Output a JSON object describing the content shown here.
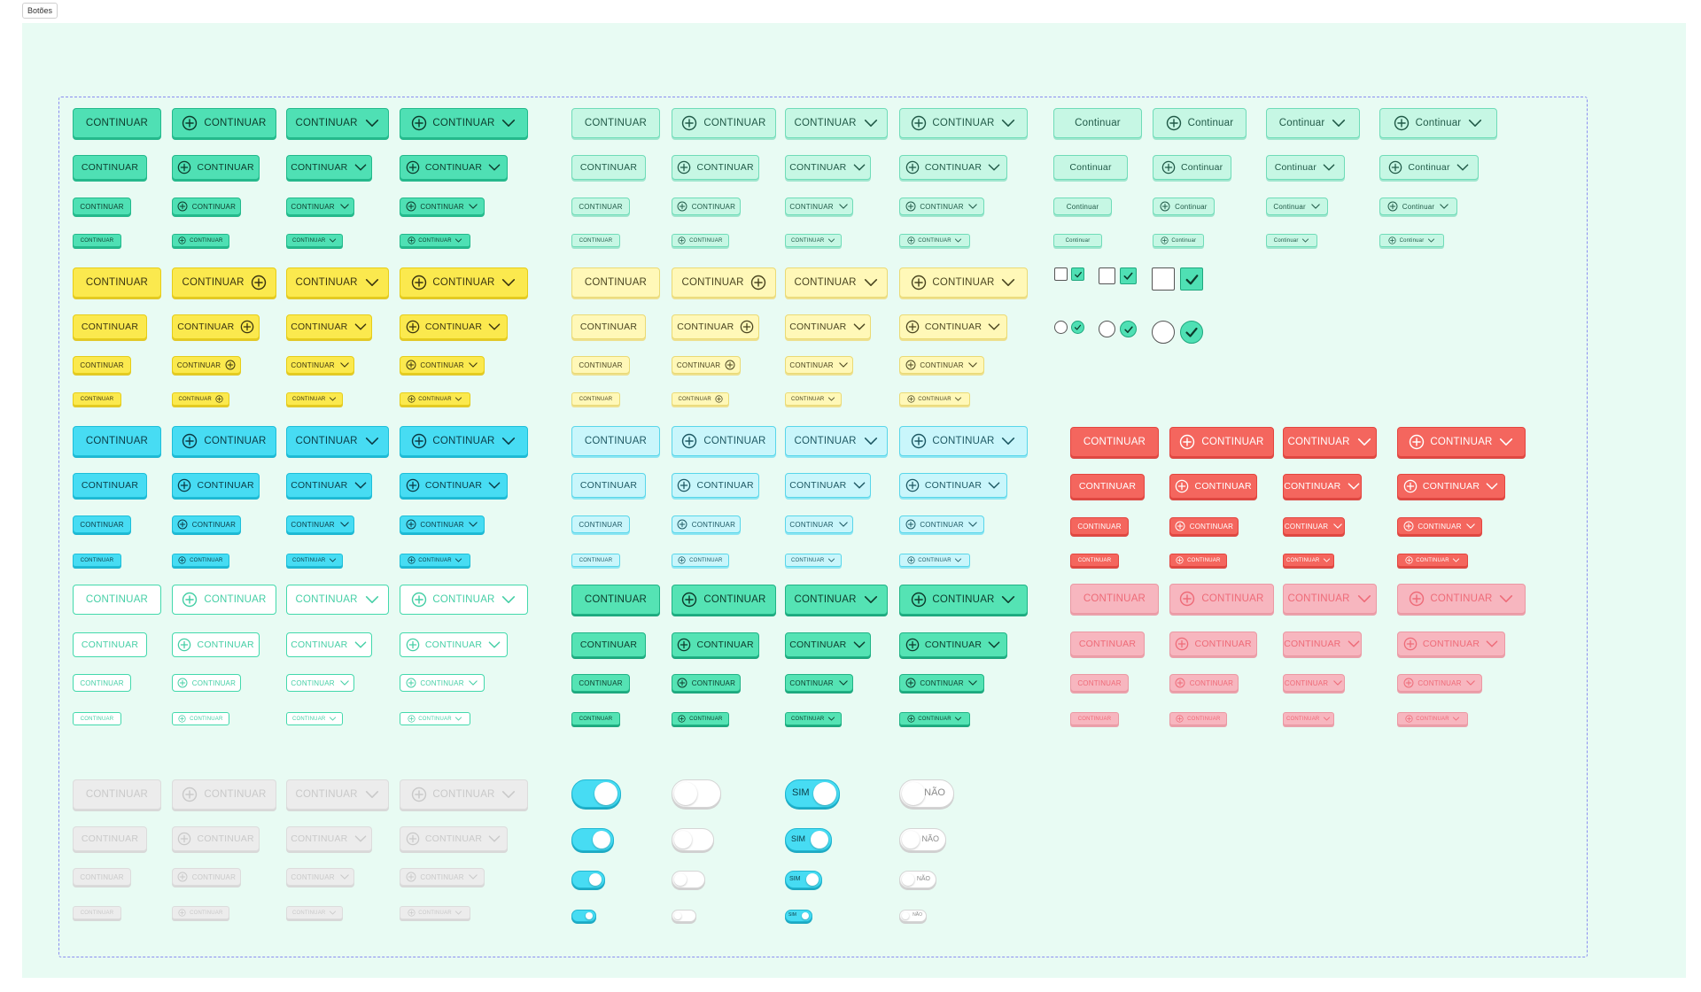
{
  "frame": {
    "label": "Botões"
  },
  "buttons": {
    "upper_label": "CONTINUAR",
    "mixed_label": "Continuar"
  },
  "variants": {
    "green_solid": "#4fe0b4",
    "green_light": "#c6f7e4",
    "yellow_solid": "#fbe94e",
    "yellow_light": "#fff8b8",
    "cyan_solid": "#47dcf3",
    "cyan_light": "#c9f6fb",
    "red_solid": "#f4665e",
    "red_light": "#f7b6bf",
    "outline_border": "#43d9ac",
    "disabled": "#ececec"
  },
  "selection_controls": {
    "checkboxes": [
      {
        "checked": false
      },
      {
        "checked": true
      },
      {
        "checked": false
      },
      {
        "checked": true
      },
      {
        "checked": false
      },
      {
        "checked": true
      }
    ],
    "radios": [
      {
        "checked": false
      },
      {
        "checked": true
      },
      {
        "checked": false
      },
      {
        "checked": true
      },
      {
        "checked": false
      },
      {
        "checked": true
      }
    ]
  },
  "toggles": {
    "on_color": "#47dcf3",
    "yes_label": "SIM",
    "no_label": "NÃO"
  },
  "icons": {
    "plus": "plus-circle-icon",
    "chevron": "chevron-down-icon",
    "check": "check-icon"
  }
}
